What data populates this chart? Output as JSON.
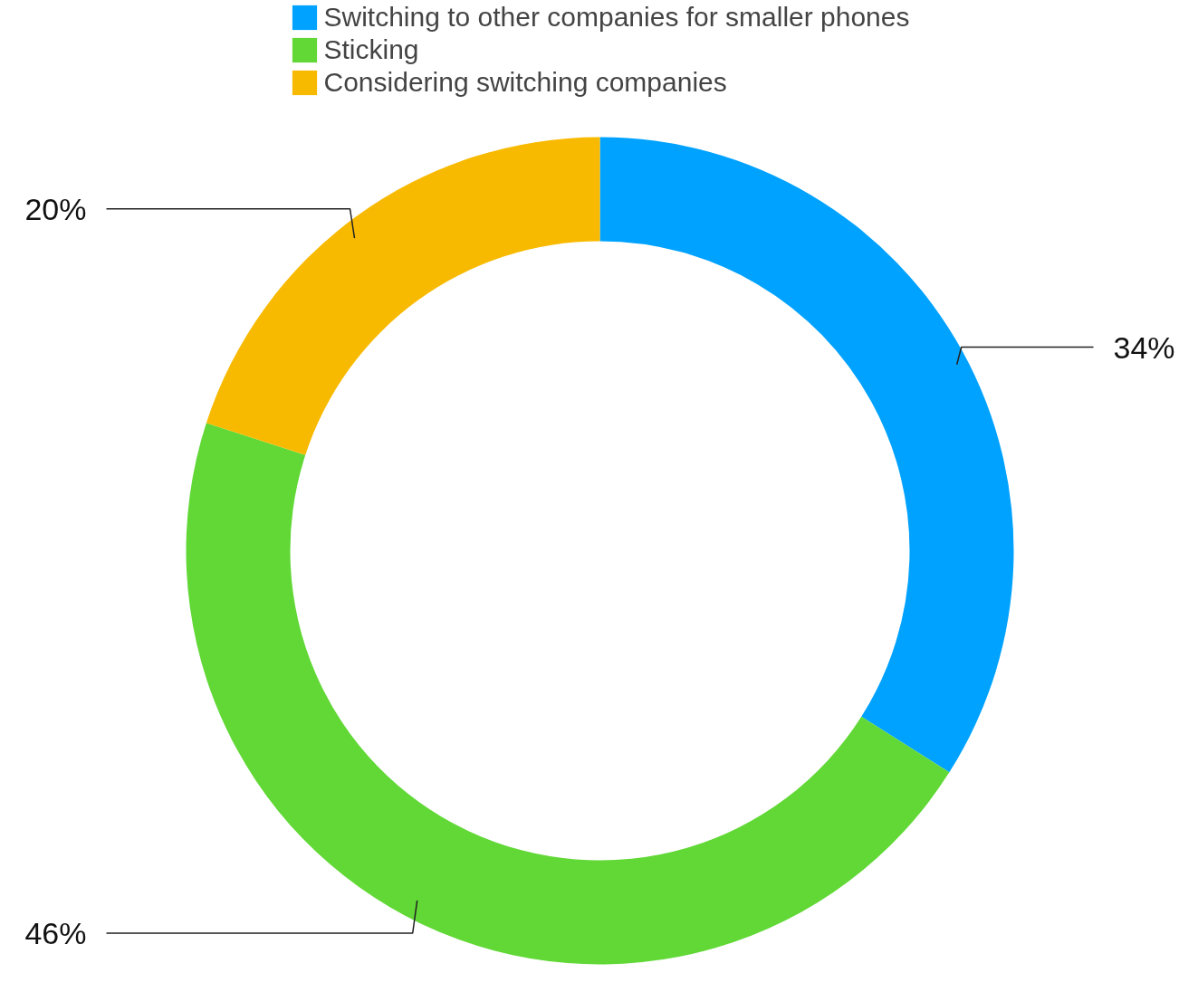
{
  "chart_data": {
    "type": "donut",
    "categories": [
      "Switching to other companies for smaller phones",
      "Sticking",
      "Considering switching companies"
    ],
    "values": [
      34,
      46,
      20
    ],
    "colors": [
      "#00a2ff",
      "#61d836",
      "#f8ba00"
    ],
    "value_labels": [
      "34%",
      "46%",
      "20%"
    ],
    "legend": "top"
  }
}
